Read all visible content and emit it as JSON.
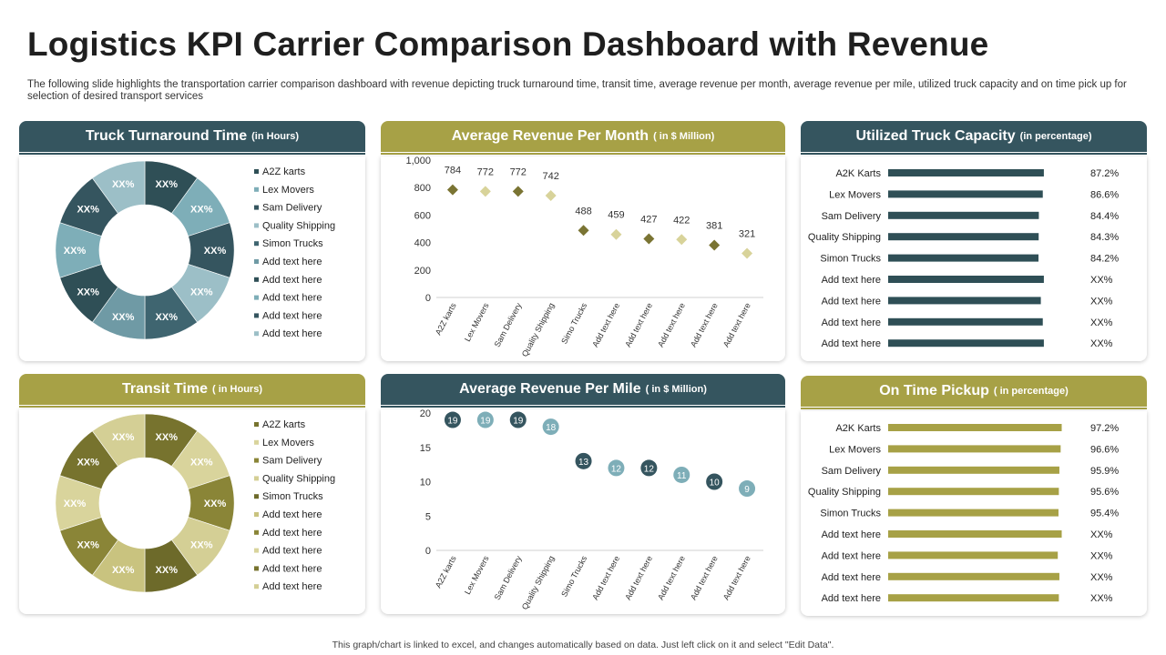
{
  "page": {
    "title": "Logistics KPI Carrier Comparison Dashboard with Revenue",
    "description": "The following slide highlights the transportation carrier comparison dashboard with revenue depicting truck turnaround time, transit time, average revenue per month, average revenue per mile, utilized truck capacity and on time pick up for selection of desired transport services",
    "footer": "This graph/chart is linked to excel, and changes automatically based on data. Just left click on it and select \"Edit Data\"."
  },
  "colors": {
    "dark_header": "#35555f",
    "olive_header": "#a7a146",
    "donut1": [
      "#2f4f56",
      "#7eaeb8",
      "#35555f",
      "#9cbfc7",
      "#3f6570",
      "#6f9aa5",
      "#2f4f56",
      "#7eaeb8",
      "#35555f",
      "#9cbfc7"
    ],
    "donut2": [
      "#77732e",
      "#d9d49c",
      "#8a8537",
      "#d4cf95",
      "#6d6a2a",
      "#c9c37f",
      "#8a8537",
      "#d9d49c",
      "#77732e",
      "#d4cf95"
    ],
    "bar_dark": "#2f4f56",
    "bar_olive": "#a7a146",
    "scatter_month": [
      "#7a7433",
      "#d8d39a",
      "#7a7433",
      "#d8d39a",
      "#7a7433",
      "#d8d39a",
      "#7a7433",
      "#d8d39a",
      "#7a7433",
      "#d8d39a"
    ],
    "scatter_mile": [
      "#35555f",
      "#7eaeb8",
      "#35555f",
      "#7eaeb8",
      "#35555f",
      "#7eaeb8",
      "#35555f",
      "#7eaeb8",
      "#35555f",
      "#7eaeb8"
    ]
  },
  "chart_data": [
    {
      "id": "truck-turnaround",
      "type": "pie",
      "title": "Truck Turnaround Time",
      "subtitle": "(in Hours)",
      "categories": [
        "A2Z karts",
        "Lex Movers",
        "Sam Delivery",
        "Quality Shipping",
        "Simon Trucks",
        "Add text here",
        "Add text here",
        "Add text here",
        "Add text here",
        "Add text here"
      ],
      "values": [
        10,
        10,
        10,
        10,
        10,
        10,
        10,
        10,
        10,
        10
      ],
      "data_labels": [
        "XX%",
        "XX%",
        "XX%",
        "XX%",
        "XX%",
        "XX%",
        "XX%",
        "XX%",
        "XX%",
        "XX%"
      ]
    },
    {
      "id": "avg-revenue-month",
      "type": "scatter",
      "title": "Average Revenue Per Month",
      "subtitle": "( in $ Million)",
      "categories": [
        "A2Z karts",
        "Lex Movers",
        "Sam Delivery",
        "Quality Shipping",
        "Simo Trucks",
        "Add text here",
        "Add text here",
        "Add text here",
        "Add text here",
        "Add text here"
      ],
      "values": [
        784,
        772,
        772,
        742,
        488,
        459,
        427,
        422,
        381,
        321
      ],
      "data_labels": [
        "784",
        "772",
        "772",
        "742",
        "488",
        "459",
        "427",
        "422",
        "381",
        "321"
      ],
      "ylim": [
        0,
        1000
      ],
      "yticks": [
        0,
        200,
        400,
        600,
        800,
        1000
      ],
      "ytick_labels": [
        "0",
        "200",
        "400",
        "600",
        "800",
        "1,000"
      ]
    },
    {
      "id": "utilized-truck-capacity",
      "type": "bar",
      "orientation": "horizontal",
      "title": "Utilized Truck Capacity",
      "subtitle": "(in percentage)",
      "categories": [
        "A2K Karts",
        "Lex Movers",
        "Sam Delivery",
        "Quality Shipping",
        "Simon Trucks",
        "Add text here",
        "Add text here",
        "Add text here",
        "Add text here"
      ],
      "values": [
        87.2,
        86.6,
        84.4,
        84.3,
        84.2,
        87.2,
        85.5,
        86.6,
        87.2
      ],
      "data_labels": [
        "87.2%",
        "86.6%",
        "84.4%",
        "84.3%",
        "84.2%",
        "XX%",
        "XX%",
        "XX%",
        "XX%"
      ]
    },
    {
      "id": "transit-time",
      "type": "pie",
      "title": "Transit Time",
      "subtitle": "( in Hours)",
      "categories": [
        "A2Z karts",
        "Lex Movers",
        "Sam Delivery",
        "Quality Shipping",
        "Simon Trucks",
        "Add text here",
        "Add text here",
        "Add text here",
        "Add text here",
        "Add text here"
      ],
      "values": [
        10,
        10,
        10,
        10,
        10,
        10,
        10,
        10,
        10,
        10
      ],
      "data_labels": [
        "XX%",
        "XX%",
        "XX%",
        "XX%",
        "XX%",
        "XX%",
        "XX%",
        "XX%",
        "XX%",
        "XX%"
      ]
    },
    {
      "id": "avg-revenue-mile",
      "type": "scatter",
      "title": "Average Revenue Per Mile",
      "subtitle": "( in $ Million)",
      "categories": [
        "A2Z karts",
        "Lex Movers",
        "Sam Delivery",
        "Quality Shipping",
        "Simo Trucks",
        "Add text here",
        "Add text here",
        "Add text here",
        "Add text here",
        "Add text here"
      ],
      "values": [
        19,
        19,
        19,
        18,
        13,
        12,
        12,
        11,
        10,
        9
      ],
      "data_labels": [
        "19",
        "19",
        "19",
        "18",
        "13",
        "12",
        "12",
        "11",
        "10",
        "9"
      ],
      "ylim": [
        0,
        20
      ],
      "yticks": [
        0,
        5,
        10,
        15,
        20
      ],
      "ytick_labels": [
        "0",
        "5",
        "10",
        "15",
        "20"
      ]
    },
    {
      "id": "on-time-pickup",
      "type": "bar",
      "orientation": "horizontal",
      "title": "On Time Pickup",
      "subtitle": "( in percentage)",
      "categories": [
        "A2K Karts",
        "Lex Movers",
        "Sam Delivery",
        "Quality Shipping",
        "Simon Trucks",
        "Add text here",
        "Add text here",
        "Add text here",
        "Add text here"
      ],
      "values": [
        97.2,
        96.6,
        95.9,
        95.6,
        95.4,
        97.2,
        95.0,
        95.9,
        95.6
      ],
      "data_labels": [
        "97.2%",
        "96.6%",
        "95.9%",
        "95.6%",
        "95.4%",
        "XX%",
        "XX%",
        "XX%",
        "XX%"
      ]
    }
  ]
}
